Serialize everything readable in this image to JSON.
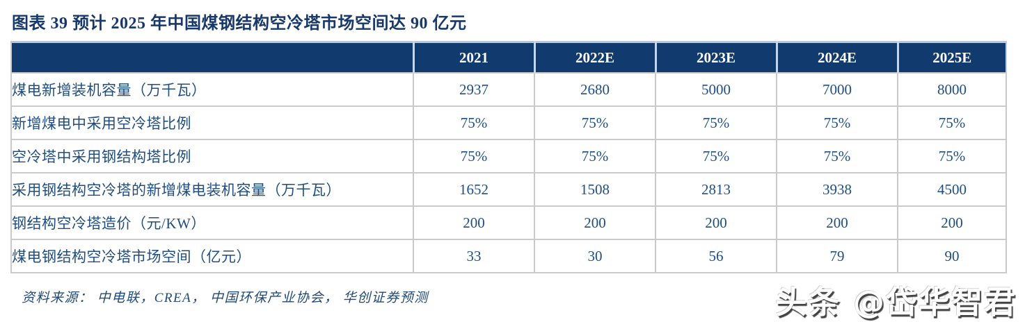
{
  "figure": {
    "title": "图表 39  预计 2025 年中国煤钢结构空冷塔市场空间达 90 亿元",
    "source_note": "资料来源： 中电联，CREA， 中国环保产业协会， 华创证券预测"
  },
  "chart_data": {
    "type": "table",
    "title": "预计 2025 年中国煤钢结构空冷塔市场空间达 90 亿元",
    "columns": [
      "",
      "2021",
      "2022E",
      "2023E",
      "2024E",
      "2025E"
    ],
    "rows": [
      {
        "label": "煤电新增装机容量（万千瓦）",
        "values": [
          "2937",
          "2680",
          "5000",
          "7000",
          "8000"
        ]
      },
      {
        "label": "新增煤电中采用空冷塔比例",
        "values": [
          "75%",
          "75%",
          "75%",
          "75%",
          "75%"
        ]
      },
      {
        "label": "空冷塔中采用钢结构塔比例",
        "values": [
          "75%",
          "75%",
          "75%",
          "75%",
          "75%"
        ]
      },
      {
        "label": "采用钢结构空冷塔的新增煤电装机容量（万千瓦）",
        "values": [
          "1652",
          "1508",
          "2813",
          "3938",
          "4500"
        ]
      },
      {
        "label": "钢结构空冷塔造价（元/KW）",
        "values": [
          "200",
          "200",
          "200",
          "200",
          "200"
        ]
      },
      {
        "label": "煤电钢结构空冷塔市场空间（亿元）",
        "values": [
          "33",
          "30",
          "56",
          "79",
          "90"
        ]
      }
    ]
  },
  "watermark": {
    "text": "头条 @岱华智君"
  },
  "colors": {
    "header_background": "#113A6E",
    "header_text": "#FFFFFF",
    "title_text": "#17386B",
    "table_text": "#1F4E82",
    "border_gray": "#CACACA",
    "border_light_blue": "#B9C7DB"
  }
}
